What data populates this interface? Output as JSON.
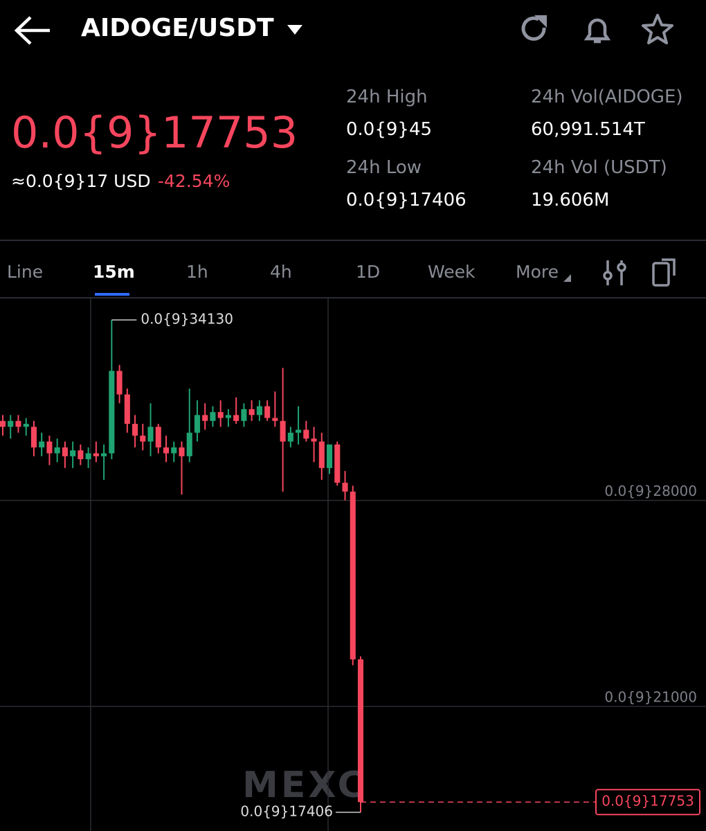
{
  "header": {
    "pair": "AIDOGE/USDT"
  },
  "ticker": {
    "price": "0.0{9}17753",
    "usd_price": "≈0.0{9}17 USD",
    "change": "-42.54%",
    "stats": [
      {
        "label": "24h High",
        "value": "0.0{9}45"
      },
      {
        "label": "24h Vol(AIDOGE)",
        "value": "60,991.514T"
      },
      {
        "label": "24h Low",
        "value": "0.0{9}17406"
      },
      {
        "label": "24h Vol (USDT)",
        "value": "19.606M"
      }
    ]
  },
  "tabs": [
    "Line",
    "15m",
    "1h",
    "4h",
    "1D",
    "Week",
    "More"
  ],
  "active_tab": 1,
  "chart_data": {
    "type": "candlestick",
    "open": [
      30700,
      30500,
      30700,
      30500,
      30500,
      29800,
      30000,
      29600,
      29800,
      29500,
      29700,
      29400,
      29600,
      29500,
      29600,
      32400,
      31600,
      30600,
      30200,
      30000,
      30500,
      29800,
      29600,
      29800,
      29500,
      30300,
      30900,
      30700,
      31000,
      30800,
      30900,
      30700,
      31100,
      30900,
      31200,
      30800,
      30700,
      30000,
      30300,
      30400,
      30100,
      30000,
      29100,
      29900,
      28600,
      28300,
      22600
    ],
    "high": [
      30900,
      30900,
      30900,
      30800,
      30700,
      30300,
      30200,
      30100,
      30000,
      30000,
      29900,
      29800,
      30000,
      29900,
      34130,
      32600,
      31800,
      30900,
      30600,
      31300,
      30600,
      30200,
      30000,
      30000,
      31800,
      31400,
      31300,
      31200,
      31400,
      31100,
      31500,
      31300,
      31400,
      31400,
      31400,
      31700,
      32500,
      30500,
      31200,
      30700,
      30500,
      30300,
      29900,
      30000,
      29000,
      28500,
      22700
    ],
    "low": [
      30200,
      30100,
      30300,
      30200,
      29500,
      29500,
      29200,
      29300,
      29100,
      29100,
      29200,
      29100,
      29300,
      28700,
      29400,
      31300,
      30300,
      29800,
      29700,
      29500,
      29600,
      29300,
      29300,
      28200,
      29300,
      30000,
      30400,
      30500,
      30500,
      30500,
      30600,
      30500,
      30700,
      30700,
      30700,
      30500,
      28300,
      29800,
      29900,
      30000,
      29300,
      28700,
      28900,
      28500,
      28000,
      22400,
      17406
    ],
    "close": [
      30500,
      30700,
      30500,
      30600,
      29800,
      30000,
      29600,
      29800,
      29500,
      29700,
      29400,
      29600,
      29500,
      29600,
      32400,
      31600,
      30600,
      30200,
      30000,
      30500,
      29800,
      29600,
      29800,
      29500,
      30300,
      30900,
      30700,
      31000,
      30800,
      30900,
      30700,
      31100,
      30900,
      31200,
      30800,
      30700,
      30000,
      30300,
      30400,
      30100,
      30000,
      29100,
      29900,
      28600,
      28300,
      22600,
      17753
    ],
    "ylim": [
      16770,
      34860
    ],
    "yticks": [
      {
        "value": 28000,
        "label": "0.0{9}28000"
      },
      {
        "value": 21000,
        "label": "0.0{9}21000"
      }
    ],
    "grid": true,
    "up_color": "#20a372",
    "down_color": "#f6465d",
    "max_label": "0.0{9}34130",
    "min_label": "0.0{9}17406",
    "last_label": "0.0{9}17753",
    "watermark": "MEXC"
  }
}
